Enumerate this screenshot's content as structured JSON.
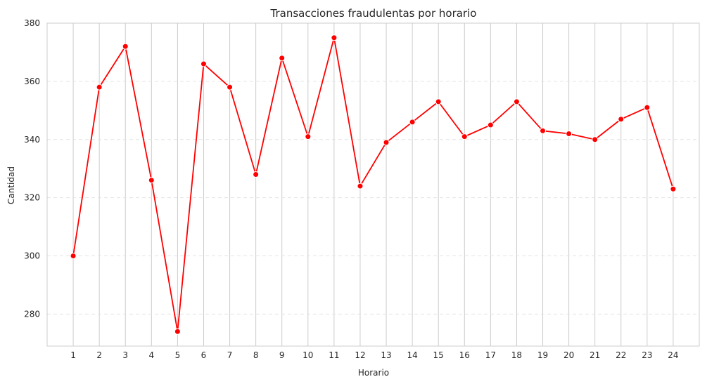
{
  "chart_data": {
    "type": "line",
    "title": "Transacciones fraudulentas por horario",
    "xlabel": "Horario",
    "ylabel": "Cantidad",
    "x": [
      1,
      2,
      3,
      4,
      5,
      6,
      7,
      8,
      9,
      10,
      11,
      12,
      13,
      14,
      15,
      16,
      17,
      18,
      19,
      20,
      21,
      22,
      23,
      24
    ],
    "x_tick_labels": [
      "1",
      "2",
      "3",
      "4",
      "5",
      "6",
      "7",
      "8",
      "9",
      "10",
      "11",
      "12",
      "13",
      "14",
      "15",
      "16",
      "17",
      "18",
      "19",
      "20",
      "21",
      "22",
      "23",
      "24"
    ],
    "series": [
      {
        "values": [
          300,
          358,
          372,
          326,
          274,
          366,
          358,
          328,
          368,
          341,
          375,
          324,
          339,
          346,
          353,
          341,
          345,
          353,
          343,
          342,
          340,
          347,
          351,
          323
        ],
        "color": "#ff0000",
        "marker": "circle"
      }
    ],
    "xlim": [
      0,
      25
    ],
    "ylim": [
      269,
      380
    ],
    "y_ticks": [
      280,
      300,
      320,
      340,
      360,
      380
    ],
    "y_tick_labels": [
      "280",
      "300",
      "320",
      "340",
      "360",
      "380"
    ],
    "grid": {
      "vertical": true,
      "horizontal": "dashed"
    },
    "colors": {
      "line": "#ff0000",
      "grid": "#cccccc",
      "spine": "#cccccc",
      "text": "#262626"
    }
  }
}
